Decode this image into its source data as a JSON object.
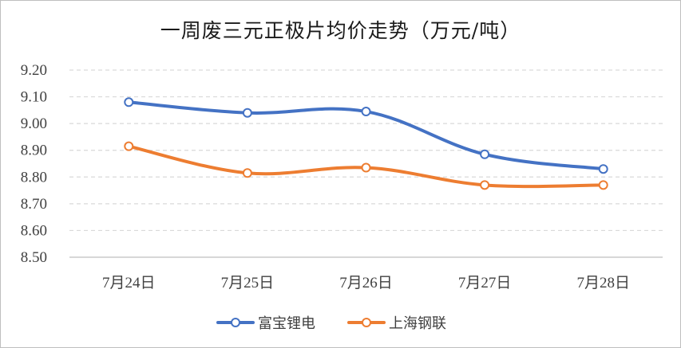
{
  "chart_data": {
    "type": "line",
    "title": "一周废三元正极片均价走势（万元/吨）",
    "categories": [
      "7月24日",
      "7月25日",
      "7月26日",
      "7月27日",
      "7月28日"
    ],
    "series": [
      {
        "name": "富宝锂电",
        "color": "#4472c4",
        "values": [
          9.08,
          9.04,
          9.045,
          8.885,
          8.83
        ]
      },
      {
        "name": "上海钢联",
        "color": "#ed7d31",
        "values": [
          8.915,
          8.815,
          8.835,
          8.77,
          8.77
        ]
      }
    ],
    "ylim": [
      8.5,
      9.2
    ],
    "yticks": [
      "8.50",
      "8.60",
      "8.70",
      "8.80",
      "8.90",
      "9.00",
      "9.10",
      "9.20"
    ],
    "grid": true,
    "smooth": true,
    "legend": "bottom"
  }
}
